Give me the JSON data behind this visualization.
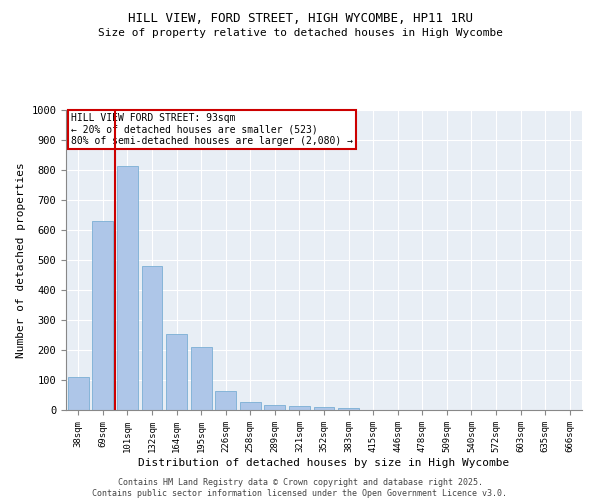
{
  "title_line1": "HILL VIEW, FORD STREET, HIGH WYCOMBE, HP11 1RU",
  "title_line2": "Size of property relative to detached houses in High Wycombe",
  "xlabel": "Distribution of detached houses by size in High Wycombe",
  "ylabel": "Number of detached properties",
  "categories": [
    "38sqm",
    "69sqm",
    "101sqm",
    "132sqm",
    "164sqm",
    "195sqm",
    "226sqm",
    "258sqm",
    "289sqm",
    "321sqm",
    "352sqm",
    "383sqm",
    "415sqm",
    "446sqm",
    "478sqm",
    "509sqm",
    "540sqm",
    "572sqm",
    "603sqm",
    "635sqm",
    "666sqm"
  ],
  "values": [
    110,
    630,
    815,
    480,
    255,
    210,
    65,
    27,
    18,
    13,
    9,
    7,
    1,
    0,
    0,
    0,
    0,
    0,
    0,
    0,
    0
  ],
  "bar_color": "#aec6e8",
  "bar_edge_color": "#7aafd4",
  "vline_color": "#cc0000",
  "annotation_text": "HILL VIEW FORD STREET: 93sqm\n← 20% of detached houses are smaller (523)\n80% of semi-detached houses are larger (2,080) →",
  "annotation_box_color": "#cc0000",
  "ylim": [
    0,
    1000
  ],
  "yticks": [
    0,
    100,
    200,
    300,
    400,
    500,
    600,
    700,
    800,
    900,
    1000
  ],
  "background_color": "#e8eef5",
  "footer_line1": "Contains HM Land Registry data © Crown copyright and database right 2025.",
  "footer_line2": "Contains public sector information licensed under the Open Government Licence v3.0."
}
